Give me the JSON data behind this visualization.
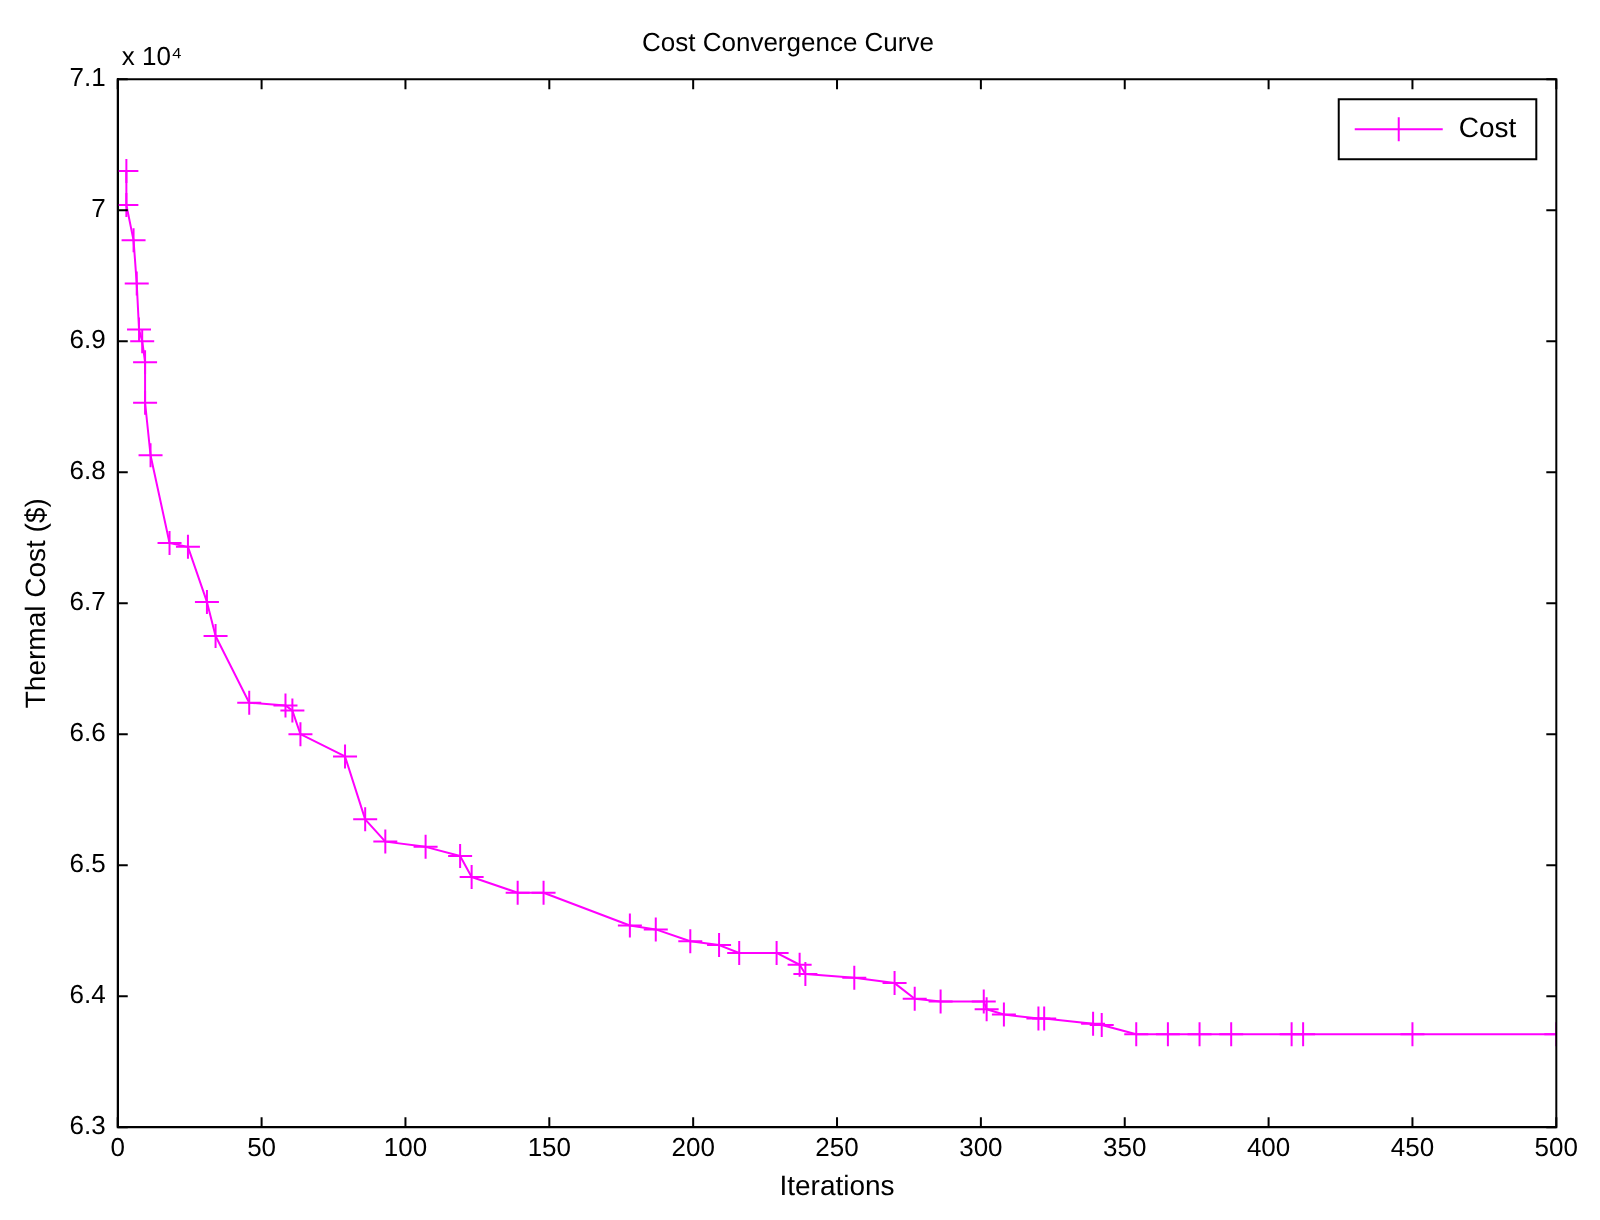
{
  "chart_data": {
    "type": "line",
    "title": "Cost Convergence Curve",
    "xlabel": "Iterations",
    "ylabel": "Thermal Cost ($)",
    "annotations": [
      "x 10⁴"
    ],
    "xlim": [
      0,
      500
    ],
    "xticks": [
      0,
      50,
      100,
      150,
      200,
      250,
      300,
      350,
      400,
      450,
      500
    ],
    "ylim": [
      6.3,
      7.1
    ],
    "yticks": [
      6.3,
      6.4,
      6.5,
      6.6,
      6.7,
      6.8,
      6.9,
      7,
      7.1
    ],
    "grid": false,
    "legend": "top right",
    "marker": "cross",
    "line_style": "solid",
    "series": [
      {
        "name": "Cost",
        "color": "#ff00ff",
        "x": [
          3,
          3,
          5.5,
          6.6,
          7.4,
          8.5,
          9.5,
          9.5,
          11.4,
          18,
          24.4,
          31,
          34,
          45.7,
          58.3,
          60.7,
          63.5,
          79,
          86,
          93,
          107,
          119,
          123,
          139,
          148,
          178,
          187,
          199,
          209,
          216,
          229,
          237,
          239,
          256,
          270,
          277,
          286,
          301,
          302,
          308,
          320,
          322,
          339,
          342,
          354,
          365,
          376,
          387,
          408,
          412,
          450,
          500
        ],
        "values": [
          7.03,
          7.004,
          6.977,
          6.944,
          6.909,
          6.9,
          6.884,
          6.853,
          6.813,
          6.746,
          6.743,
          6.701,
          6.675,
          6.624,
          6.622,
          6.618,
          6.6,
          6.583,
          6.535,
          6.518,
          6.514,
          6.507,
          6.491,
          6.479,
          6.479,
          6.454,
          6.451,
          6.442,
          6.439,
          6.433,
          6.433,
          6.424,
          6.417,
          6.414,
          6.41,
          6.398,
          6.396,
          6.396,
          6.39,
          6.386,
          6.383,
          6.383,
          6.379,
          6.378,
          6.371,
          6.371,
          6.371,
          6.371,
          6.371,
          6.371,
          6.371,
          6.371
        ]
      }
    ]
  }
}
